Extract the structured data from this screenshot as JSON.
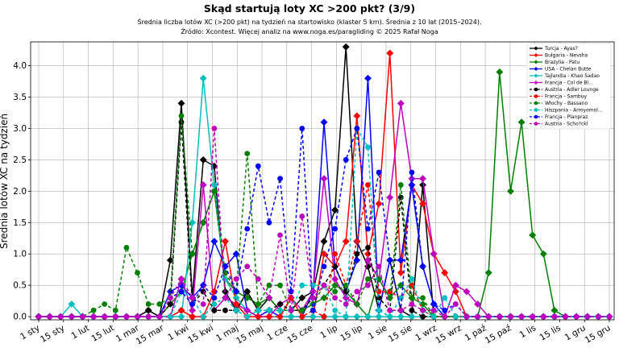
{
  "chart_data": {
    "type": "line",
    "title": "Skąd startują loty XC >200 pkt? (3/9)",
    "subtitle_lines": [
      "Średnia liczba lotów XC (>200 pkt) na tydzień na startowisko (klaster 5 km). Średnia z 10 lat (2015–2024).",
      "Źródło: Xcontest. Więcej analiz na www.noga.es/paragliding © 2025 Rafał Noga"
    ],
    "xlabel": "",
    "ylabel": "Średnia lotów XC na tydzień",
    "ylim": [
      -0.05,
      4.38
    ],
    "y_ticks": [
      0.0,
      0.5,
      1.0,
      1.5,
      2.0,
      2.5,
      3.0,
      3.5,
      4.0
    ],
    "x_tick_labels": [
      "1 sty",
      "15 sty",
      "1 lut",
      "15 lut",
      "1 mar",
      "15 mar",
      "1 kwi",
      "15 kwi",
      "1 maj",
      "15 maj",
      "1 cze",
      "15 cze",
      "1 lip",
      "15 lip",
      "1 sie",
      "15 sie",
      "1 wrz",
      "15 wrz",
      "1 paź",
      "15 paź",
      "1 lis",
      "15 lis",
      "1 gru",
      "15 gru"
    ],
    "grid": true,
    "legend_position": "top-right",
    "series": [
      {
        "name": "Turcja - Ayas?",
        "color": "#000000",
        "dash": false,
        "marker": "diamond",
        "values": [
          0,
          0,
          0,
          0,
          0,
          0,
          0,
          0,
          0,
          0,
          0.1,
          0,
          0.9,
          3.4,
          0.3,
          2.5,
          2.4,
          0.4,
          0.1,
          0.4,
          0.1,
          0.3,
          0.1,
          0.1,
          0.3,
          0.4,
          1.2,
          1.7,
          4.3,
          1.2,
          0.8,
          0.1,
          0.9,
          0.1,
          0,
          2.1,
          0,
          0,
          0,
          0,
          0,
          0,
          0,
          0,
          0,
          0,
          0,
          0,
          0,
          0,
          0,
          0,
          0
        ]
      },
      {
        "name": "Bułgaria - Nevsha",
        "color": "#ff0000",
        "dash": false,
        "marker": "diamond",
        "values": [
          0,
          0,
          0,
          0,
          0,
          0,
          0,
          0,
          0,
          0,
          0,
          0,
          0,
          0.1,
          0,
          0,
          0.4,
          1.2,
          0.2,
          0,
          0,
          0,
          0,
          0.3,
          0,
          0,
          1.0,
          0.8,
          1.2,
          3.2,
          1.0,
          1.8,
          4.2,
          0.7,
          2.1,
          1.8,
          1.0,
          0.7,
          0.4,
          0,
          0,
          0,
          0,
          0,
          0,
          0,
          0,
          0,
          0,
          0,
          0,
          0,
          0
        ]
      },
      {
        "name": "Brazylia - Patu",
        "color": "#008000",
        "dash": false,
        "marker": "diamond",
        "values": [
          0,
          0,
          0,
          0,
          0,
          0,
          0,
          0,
          0,
          0,
          0,
          0,
          0.2,
          0.4,
          1.0,
          1.5,
          2.0,
          0.6,
          0.4,
          0.3,
          0.2,
          0.3,
          0.1,
          0.1,
          0.1,
          0.2,
          0.3,
          0.5,
          0.4,
          0.2,
          0,
          0.6,
          0.3,
          0.5,
          0.3,
          0.2,
          0,
          0,
          0,
          0,
          0,
          0.7,
          3.9,
          2.0,
          3.1,
          1.3,
          1.0,
          0.1,
          0,
          0,
          0,
          0,
          0
        ]
      },
      {
        "name": "USA - Chelan Butte",
        "color": "#0000ff",
        "dash": false,
        "marker": "diamond",
        "values": [
          0,
          0,
          0,
          0,
          0,
          0,
          0,
          0,
          0,
          0,
          0,
          0,
          0.4,
          0.5,
          0.3,
          0.5,
          1.2,
          0.8,
          1.0,
          0.1,
          0,
          0.1,
          0,
          0,
          0,
          0.4,
          3.1,
          0.8,
          0.4,
          0.9,
          3.8,
          0.1,
          0.9,
          0.9,
          2.1,
          0.8,
          0.2,
          0,
          0,
          0,
          0,
          0,
          0,
          0,
          0,
          0,
          0,
          0,
          0,
          0,
          0,
          0,
          0
        ]
      },
      {
        "name": "Tajlandia - Khao Sadao",
        "color": "#00bfbf",
        "dash": false,
        "marker": "diamond",
        "values": [
          0,
          0,
          0,
          0.2,
          0,
          0,
          0,
          0,
          0,
          0,
          0,
          0,
          0,
          0,
          1.5,
          3.8,
          2.1,
          0.6,
          0.3,
          0.1,
          0,
          0,
          0,
          0,
          0,
          0,
          0,
          0,
          0,
          0,
          0,
          0,
          0,
          0,
          0,
          0,
          0,
          0,
          0,
          0,
          0,
          0,
          0,
          0,
          0,
          0,
          0,
          0,
          0,
          0,
          0,
          0,
          0
        ]
      },
      {
        "name": "Francja - Col de Bl...",
        "color": "#bf00bf",
        "dash": false,
        "marker": "diamond",
        "values": [
          0,
          0,
          0,
          0,
          0,
          0,
          0,
          0,
          0,
          0,
          0,
          0,
          0,
          0.6,
          0.1,
          2.1,
          0.1,
          0.3,
          0.2,
          0.1,
          0,
          0,
          0.2,
          0.3,
          0.1,
          0.4,
          2.2,
          0.6,
          0.3,
          0.2,
          0.9,
          0.6,
          1.9,
          3.4,
          2.2,
          2.2,
          1.0,
          0,
          0.5,
          0.4,
          0.2,
          0,
          0,
          0,
          0,
          0,
          0,
          0,
          0,
          0,
          0,
          0,
          0
        ]
      },
      {
        "name": "Austria - Adler Lounge",
        "color": "#000000",
        "dash": true,
        "marker": "circle",
        "values": [
          0,
          0,
          0,
          0,
          0,
          0,
          0,
          0,
          0,
          0,
          0.1,
          0,
          0.2,
          3.1,
          0.2,
          0.4,
          0.1,
          0.1,
          0.1,
          0.4,
          0.1,
          0.1,
          0.2,
          0.1,
          0.1,
          0.3,
          0.5,
          0.8,
          0.4,
          1.0,
          1.1,
          0.3,
          0.1,
          1.9,
          0.1,
          0,
          0,
          0,
          0,
          0,
          0,
          0,
          0,
          0,
          0,
          0,
          0,
          0,
          0,
          0,
          0,
          0,
          0
        ]
      },
      {
        "name": "Francja - Sambuy",
        "color": "#ff0000",
        "dash": true,
        "marker": "circle",
        "values": [
          0,
          0,
          0,
          0,
          0,
          0,
          0,
          0,
          0,
          0,
          0,
          0,
          0,
          0.1,
          0,
          0,
          0.4,
          1.2,
          0.2,
          0,
          0,
          0,
          0,
          0.3,
          0,
          0.1,
          0,
          1.0,
          0.5,
          1.2,
          2.1,
          0.4,
          0.4,
          0.3,
          0.5,
          0.1,
          0,
          0,
          0,
          0,
          0,
          0,
          0,
          0,
          0,
          0,
          0,
          0,
          0,
          0,
          0,
          0,
          0
        ]
      },
      {
        "name": "Włochy - Bassano",
        "color": "#008000",
        "dash": true,
        "marker": "circle",
        "values": [
          0,
          0,
          0,
          0,
          0,
          0.1,
          0.2,
          0.1,
          1.1,
          0.7,
          0.2,
          0.2,
          0.3,
          3.2,
          1.0,
          1.5,
          2.0,
          0.7,
          0.4,
          2.6,
          0.2,
          0.5,
          0.5,
          0.1,
          0.1,
          0.2,
          0.5,
          0.4,
          0.5,
          0.2,
          0.6,
          0.6,
          0.3,
          2.1,
          0.3,
          0.3,
          0,
          0,
          0,
          0,
          0,
          0,
          0,
          0,
          0,
          0,
          0,
          0,
          0,
          0,
          0,
          0,
          0
        ]
      },
      {
        "name": "Hiszpania - Arroyomol...",
        "color": "#00bfbf",
        "dash": true,
        "marker": "circle",
        "values": [
          0,
          0,
          0,
          0,
          0,
          0,
          0,
          0,
          0,
          0,
          0,
          0,
          0,
          0.4,
          0.3,
          0,
          0.2,
          0.3,
          0.1,
          0,
          0.1,
          0.1,
          0.1,
          0.1,
          0.5,
          0.5,
          0.5,
          0.1,
          0,
          3.0,
          2.7,
          0.1,
          0,
          0.3,
          0.6,
          0.1,
          0,
          0.3,
          0,
          0,
          0,
          0,
          0,
          0,
          0,
          0,
          0,
          0,
          0,
          0,
          0,
          0,
          0
        ]
      },
      {
        "name": "Francja - Planpraz",
        "color": "#0000ff",
        "dash": true,
        "marker": "circle",
        "values": [
          0,
          0,
          0,
          0,
          0,
          0,
          0,
          0,
          0,
          0,
          0,
          0,
          0.3,
          0.4,
          0.2,
          0.5,
          0.3,
          0.8,
          0.4,
          1.4,
          2.4,
          1.5,
          2.2,
          0.4,
          3.0,
          0.1,
          0.8,
          1.4,
          2.5,
          3.0,
          1.4,
          2.3,
          0.9,
          0.1,
          2.3,
          0.8,
          0.2,
          0.1,
          0.2,
          0,
          0,
          0,
          0,
          0,
          0,
          0,
          0,
          0,
          0,
          0,
          0,
          0,
          0
        ]
      },
      {
        "name": "Austria - Scho?ckl",
        "color": "#bf00bf",
        "dash": true,
        "marker": "circle",
        "values": [
          0,
          0,
          0,
          0,
          0,
          0,
          0,
          0,
          0,
          0,
          0,
          0,
          0.3,
          0.6,
          0.3,
          0.2,
          3.0,
          0.3,
          0.6,
          0.8,
          0.6,
          0.3,
          1.3,
          0.1,
          1.6,
          0.3,
          0.5,
          0.3,
          0.2,
          0.4,
          0.5,
          0.8,
          0.1,
          0.1,
          0.2,
          0.1,
          0.1,
          0,
          0.2,
          0,
          0,
          0,
          0,
          0,
          0,
          0,
          0,
          0,
          0,
          0,
          0,
          0,
          0
        ]
      }
    ]
  }
}
